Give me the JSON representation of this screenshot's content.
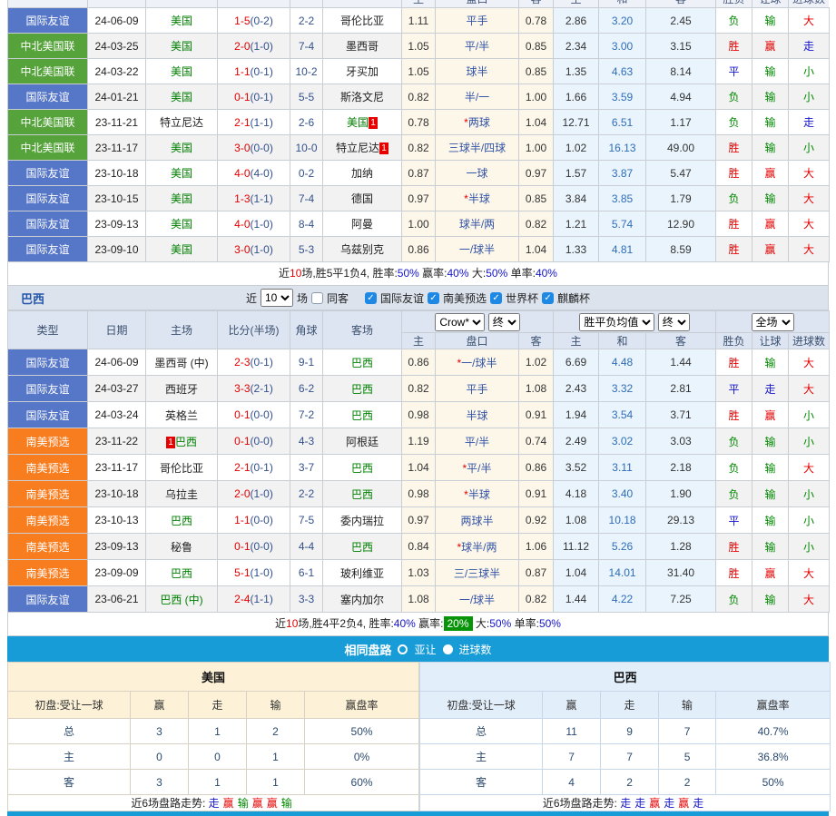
{
  "colors": {
    "league": {
      "国际友谊": "#5676c8",
      "中北美国联": "#55a33a",
      "南美预选": "#f87d1e"
    },
    "result": {
      "胜": "#e60000",
      "赢": "#e60000",
      "大": "#e60000",
      "平": "#1414cc",
      "走": "#1414cc",
      "负": "#008800",
      "输": "#008800",
      "小": "#008800"
    },
    "score_ft": "#e60000",
    "score_ht": "#33508c",
    "team_green": "#008000",
    "handicap_text": "#3354a6",
    "draw_odds": "#2f6db8",
    "accent_bar": "#189cd8",
    "highlight_bg": "#089408"
  },
  "headers": {
    "columns": [
      "类型",
      "日期",
      "主场",
      "比分(半场)",
      "角球",
      "客场"
    ],
    "sub": [
      "主",
      "盘口",
      "客",
      "主",
      "和",
      "客",
      "胜负",
      "让球",
      "进球数"
    ]
  },
  "controls": {
    "company": "Crow*",
    "stage1": "终",
    "euro": "胜平负均值",
    "stage2": "终",
    "scope": "全场"
  },
  "filter": {
    "team": "巴西",
    "near": "近",
    "count": "10",
    "games": "场",
    "same_away": "同客",
    "leagues": [
      "国际友谊",
      "南美预选",
      "世界杯",
      "麒麟杯"
    ]
  },
  "usa": {
    "rows": [
      {
        "lg": "国际友谊",
        "dt": "24-06-09",
        "h": {
          "n": "美国",
          "g": 1
        },
        "ft": "1-5",
        "ht": "(0-2)",
        "ck": "2-2",
        "a": {
          "n": "哥伦比亚"
        },
        "ah": "1.11",
        "ln": "平手",
        "st": 0,
        "aa": "0.78",
        "e1": "2.86",
        "e2": "3.20",
        "e3": "2.45",
        "r1": "负",
        "r2": "输",
        "r3": "大"
      },
      {
        "lg": "中北美国联",
        "dt": "24-03-25",
        "h": {
          "n": "美国",
          "g": 1
        },
        "ft": "2-0",
        "ht": "(1-0)",
        "ck": "7-4",
        "a": {
          "n": "墨西哥"
        },
        "ah": "1.05",
        "ln": "平/半",
        "st": 0,
        "aa": "0.85",
        "e1": "2.34",
        "e2": "3.00",
        "e3": "3.15",
        "r1": "胜",
        "r2": "赢",
        "r3": "走"
      },
      {
        "lg": "中北美国联",
        "dt": "24-03-22",
        "h": {
          "n": "美国",
          "g": 1
        },
        "ft": "1-1",
        "ht": "(0-1)",
        "ck": "10-2",
        "a": {
          "n": "牙买加"
        },
        "ah": "1.05",
        "ln": "球半",
        "st": 0,
        "aa": "0.85",
        "e1": "1.35",
        "e2": "4.63",
        "e3": "8.14",
        "r1": "平",
        "r2": "输",
        "r3": "小"
      },
      {
        "lg": "国际友谊",
        "dt": "24-01-21",
        "h": {
          "n": "美国",
          "g": 1
        },
        "ft": "0-1",
        "ht": "(0-1)",
        "ck": "5-5",
        "a": {
          "n": "斯洛文尼"
        },
        "ah": "0.82",
        "ln": "半/一",
        "st": 0,
        "aa": "1.00",
        "e1": "1.66",
        "e2": "3.59",
        "e3": "4.94",
        "r1": "负",
        "r2": "输",
        "r3": "小"
      },
      {
        "lg": "中北美国联",
        "dt": "23-11-21",
        "h": {
          "n": "特立尼达"
        },
        "ft": "2-1",
        "ht": "(1-1)",
        "ck": "2-6",
        "a": {
          "n": "美国",
          "g": 1,
          "b": "1"
        },
        "ah": "0.78",
        "ln": "两球",
        "st": 1,
        "aa": "1.04",
        "e1": "12.71",
        "e2": "6.51",
        "e3": "1.17",
        "r1": "负",
        "r2": "输",
        "r3": "走"
      },
      {
        "lg": "中北美国联",
        "dt": "23-11-17",
        "h": {
          "n": "美国",
          "g": 1
        },
        "ft": "3-0",
        "ht": "(0-0)",
        "ck": "10-0",
        "a": {
          "n": "特立尼达",
          "b": "1"
        },
        "ah": "0.82",
        "ln": "三球半/四球",
        "st": 0,
        "aa": "1.00",
        "e1": "1.02",
        "e2": "16.13",
        "e3": "49.00",
        "r1": "胜",
        "r2": "输",
        "r3": "小"
      },
      {
        "lg": "国际友谊",
        "dt": "23-10-18",
        "h": {
          "n": "美国",
          "g": 1
        },
        "ft": "4-0",
        "ht": "(4-0)",
        "ck": "0-2",
        "a": {
          "n": "加纳"
        },
        "ah": "0.87",
        "ln": "一球",
        "st": 0,
        "aa": "0.97",
        "e1": "1.57",
        "e2": "3.87",
        "e3": "5.47",
        "r1": "胜",
        "r2": "赢",
        "r3": "大"
      },
      {
        "lg": "国际友谊",
        "dt": "23-10-15",
        "h": {
          "n": "美国",
          "g": 1
        },
        "ft": "1-3",
        "ht": "(1-1)",
        "ck": "7-4",
        "a": {
          "n": "德国"
        },
        "ah": "0.97",
        "ln": "半球",
        "st": 1,
        "aa": "0.85",
        "e1": "3.84",
        "e2": "3.85",
        "e3": "1.79",
        "r1": "负",
        "r2": "输",
        "r3": "大"
      },
      {
        "lg": "国际友谊",
        "dt": "23-09-13",
        "h": {
          "n": "美国",
          "g": 1
        },
        "ft": "4-0",
        "ht": "(1-0)",
        "ck": "8-4",
        "a": {
          "n": "阿曼"
        },
        "ah": "1.00",
        "ln": "球半/两",
        "st": 0,
        "aa": "0.82",
        "e1": "1.21",
        "e2": "5.74",
        "e3": "12.90",
        "r1": "胜",
        "r2": "赢",
        "r3": "大"
      },
      {
        "lg": "国际友谊",
        "dt": "23-09-10",
        "h": {
          "n": "美国",
          "g": 1
        },
        "ft": "3-0",
        "ht": "(1-0)",
        "ck": "5-3",
        "a": {
          "n": "乌兹别克"
        },
        "ah": "0.86",
        "ln": "一/球半",
        "st": 0,
        "aa": "1.04",
        "e1": "1.33",
        "e2": "4.81",
        "e3": "8.59",
        "r1": "胜",
        "r2": "赢",
        "r3": "大"
      }
    ],
    "summary": {
      "prefix": "近",
      "games": "10",
      "middle": "场,胜5平1负4, ",
      "parts": [
        {
          "label": "胜率:",
          "value": "50%"
        },
        {
          "label": "赢率:",
          "value": "40%"
        },
        {
          "label": "大:",
          "value": "50%"
        },
        {
          "label": "单率:",
          "value": "40%"
        }
      ]
    }
  },
  "brazil": {
    "rows": [
      {
        "lg": "国际友谊",
        "dt": "24-06-09",
        "h": {
          "n": "墨西哥 (中)"
        },
        "ft": "2-3",
        "ht": "(0-1)",
        "ck": "9-1",
        "a": {
          "n": "巴西",
          "g": 1
        },
        "ah": "0.86",
        "ln": "一/球半",
        "st": 1,
        "aa": "1.02",
        "e1": "6.69",
        "e2": "4.48",
        "e3": "1.44",
        "r1": "胜",
        "r2": "输",
        "r3": "大"
      },
      {
        "lg": "国际友谊",
        "dt": "24-03-27",
        "h": {
          "n": "西班牙"
        },
        "ft": "3-3",
        "ht": "(2-1)",
        "ck": "6-2",
        "a": {
          "n": "巴西",
          "g": 1
        },
        "ah": "0.82",
        "ln": "平手",
        "st": 0,
        "aa": "1.08",
        "e1": "2.43",
        "e2": "3.32",
        "e3": "2.81",
        "r1": "平",
        "r2": "走",
        "r3": "大"
      },
      {
        "lg": "国际友谊",
        "dt": "24-03-24",
        "h": {
          "n": "英格兰"
        },
        "ft": "0-1",
        "ht": "(0-0)",
        "ck": "7-2",
        "a": {
          "n": "巴西",
          "g": 1
        },
        "ah": "0.98",
        "ln": "半球",
        "st": 0,
        "aa": "0.91",
        "e1": "1.94",
        "e2": "3.54",
        "e3": "3.71",
        "r1": "胜",
        "r2": "赢",
        "r3": "小"
      },
      {
        "lg": "南美预选",
        "dt": "23-11-22",
        "h": {
          "n": "巴西",
          "g": 1,
          "b": "1",
          "bp": "before"
        },
        "ft": "0-1",
        "ht": "(0-0)",
        "ck": "4-3",
        "a": {
          "n": "阿根廷"
        },
        "ah": "1.19",
        "ln": "平/半",
        "st": 0,
        "aa": "0.74",
        "e1": "2.49",
        "e2": "3.02",
        "e3": "3.03",
        "r1": "负",
        "r2": "输",
        "r3": "小"
      },
      {
        "lg": "南美预选",
        "dt": "23-11-17",
        "h": {
          "n": "哥伦比亚"
        },
        "ft": "2-1",
        "ht": "(0-1)",
        "ck": "3-7",
        "a": {
          "n": "巴西",
          "g": 1
        },
        "ah": "1.04",
        "ln": "平/半",
        "st": 1,
        "aa": "0.86",
        "e1": "3.52",
        "e2": "3.11",
        "e3": "2.18",
        "r1": "负",
        "r2": "输",
        "r3": "大"
      },
      {
        "lg": "南美预选",
        "dt": "23-10-18",
        "h": {
          "n": "乌拉圭"
        },
        "ft": "2-0",
        "ht": "(1-0)",
        "ck": "2-2",
        "a": {
          "n": "巴西",
          "g": 1
        },
        "ah": "0.98",
        "ln": "半球",
        "st": 1,
        "aa": "0.91",
        "e1": "4.18",
        "e2": "3.40",
        "e3": "1.90",
        "r1": "负",
        "r2": "输",
        "r3": "小"
      },
      {
        "lg": "南美预选",
        "dt": "23-10-13",
        "h": {
          "n": "巴西",
          "g": 1
        },
        "ft": "1-1",
        "ht": "(0-0)",
        "ck": "7-5",
        "a": {
          "n": "委内瑞拉"
        },
        "ah": "0.97",
        "ln": "两球半",
        "st": 0,
        "aa": "0.92",
        "e1": "1.08",
        "e2": "10.18",
        "e3": "29.13",
        "r1": "平",
        "r2": "输",
        "r3": "小"
      },
      {
        "lg": "南美预选",
        "dt": "23-09-13",
        "h": {
          "n": "秘鲁"
        },
        "ft": "0-1",
        "ht": "(0-0)",
        "ck": "4-4",
        "a": {
          "n": "巴西",
          "g": 1
        },
        "ah": "0.84",
        "ln": "球半/两",
        "st": 1,
        "aa": "1.06",
        "e1": "11.12",
        "e2": "5.26",
        "e3": "1.28",
        "r1": "胜",
        "r2": "输",
        "r3": "小"
      },
      {
        "lg": "南美预选",
        "dt": "23-09-09",
        "h": {
          "n": "巴西",
          "g": 1
        },
        "ft": "5-1",
        "ht": "(1-0)",
        "ck": "6-1",
        "a": {
          "n": "玻利维亚"
        },
        "ah": "1.03",
        "ln": "三/三球半",
        "st": 0,
        "aa": "0.87",
        "e1": "1.04",
        "e2": "14.01",
        "e3": "31.40",
        "r1": "胜",
        "r2": "赢",
        "r3": "大"
      },
      {
        "lg": "国际友谊",
        "dt": "23-06-21",
        "h": {
          "n": "巴西 (中)",
          "g": 1
        },
        "ft": "2-4",
        "ht": "(1-1)",
        "ck": "3-3",
        "a": {
          "n": "塞内加尔"
        },
        "ah": "1.08",
        "ln": "一/球半",
        "st": 0,
        "aa": "0.82",
        "e1": "1.44",
        "e2": "4.22",
        "e3": "7.25",
        "r1": "负",
        "r2": "输",
        "r3": "大"
      }
    ],
    "summary": {
      "prefix": "近",
      "games": "10",
      "middle": "场,胜4平2负4, ",
      "parts": [
        {
          "label": "胜率:",
          "value": "40%"
        },
        {
          "label": "赢率:",
          "value": "20%",
          "highlight": true
        },
        {
          "label": "大:",
          "value": "50%"
        },
        {
          "label": "单率:",
          "value": "50%"
        }
      ]
    }
  },
  "bar": {
    "title": "相同盘路",
    "options": [
      {
        "label": "亚让",
        "selected": true
      },
      {
        "label": "进球数",
        "selected": false
      }
    ]
  },
  "compare": {
    "left": {
      "title": "美国",
      "header": [
        "初盘:受让一球",
        "赢",
        "走",
        "输",
        "赢盘率"
      ],
      "rows": [
        [
          "总",
          "3",
          "1",
          "2",
          "50%"
        ],
        [
          "主",
          "0",
          "0",
          "1",
          "0%"
        ],
        [
          "客",
          "3",
          "1",
          "1",
          "60%"
        ]
      ],
      "trend_label": "近6场盘路走势:",
      "trend": [
        "走",
        "赢",
        "输",
        "赢",
        "赢",
        "输"
      ]
    },
    "right": {
      "title": "巴西",
      "header": [
        "初盘:受让一球",
        "赢",
        "走",
        "输",
        "赢盘率"
      ],
      "rows": [
        [
          "总",
          "11",
          "9",
          "7",
          "40.7%"
        ],
        [
          "主",
          "7",
          "7",
          "5",
          "36.8%"
        ],
        [
          "客",
          "4",
          "2",
          "2",
          "50%"
        ]
      ],
      "trend_label": "近6场盘路走势:",
      "trend": [
        "走",
        "走",
        "赢",
        "走",
        "赢",
        "走"
      ]
    }
  }
}
